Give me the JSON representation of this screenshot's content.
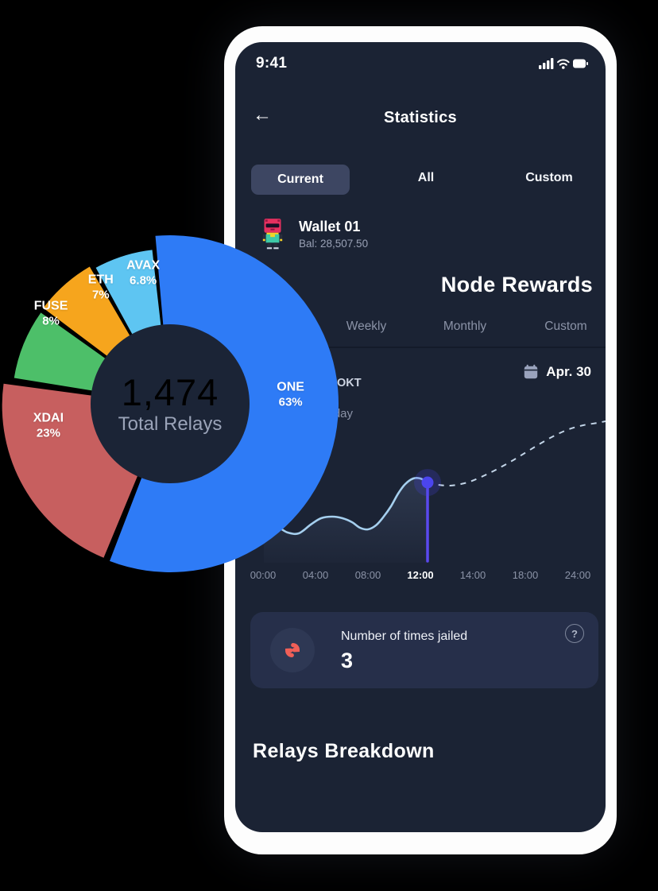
{
  "status_bar": {
    "time": "9:41"
  },
  "header": {
    "back_icon": "←",
    "title": "Statistics"
  },
  "range_tabs": {
    "items": [
      {
        "label": "Current",
        "selected": true
      },
      {
        "label": "All",
        "selected": false
      },
      {
        "label": "Custom",
        "selected": false
      }
    ]
  },
  "wallet": {
    "name": "Wallet 01",
    "balance": "Bal: 28,507.50"
  },
  "node_rewards": {
    "title": "Node Rewards",
    "period_tabs": [
      "Weekly",
      "Monthly",
      "Custom"
    ],
    "reward_unit": "OKT",
    "reward_period": "Today",
    "date": "Apr. 30"
  },
  "chart_data": [
    {
      "type": "pie",
      "style": "donut",
      "center_value": "1,474",
      "center_label": "Total Relays",
      "slices": [
        {
          "label": "ONE",
          "pct": 63,
          "color": "#2e7bf6"
        },
        {
          "label": "XDAI",
          "pct": 23,
          "color": "#c75f5f"
        },
        {
          "label": "FUSE",
          "pct": 8,
          "color": "#4dbf69"
        },
        {
          "label": "ETH",
          "pct": 7,
          "color": "#f6a51d"
        },
        {
          "label": "AVAX",
          "pct": 6.8,
          "color": "#5ec5f2"
        }
      ]
    },
    {
      "type": "line",
      "x_ticks": [
        "00:00",
        "04:00",
        "08:00",
        "12:00",
        "14:00",
        "18:00",
        "24:00"
      ],
      "highlighted_tick": "12:00",
      "marker_at": "12:00",
      "series": [
        {
          "name": "actual",
          "style": "solid",
          "points": [
            [
              36,
              172
            ],
            [
              52,
              170
            ],
            [
              66,
              177
            ],
            [
              80,
              178
            ],
            [
              95,
              167
            ],
            [
              108,
              159
            ],
            [
              122,
              157
            ],
            [
              135,
              159
            ],
            [
              147,
              164
            ],
            [
              157,
              171
            ],
            [
              167,
              173
            ],
            [
              177,
              168
            ],
            [
              186,
              158
            ],
            [
              196,
              144
            ],
            [
              205,
              128
            ],
            [
              214,
              116
            ],
            [
              224,
              109
            ],
            [
              233,
              109
            ],
            [
              242,
              114
            ]
          ]
        },
        {
          "name": "projected",
          "style": "dashed",
          "points": [
            [
              242,
              114
            ],
            [
              256,
              117
            ],
            [
              270,
              118
            ],
            [
              284,
              116
            ],
            [
              298,
              112
            ],
            [
              314,
              105
            ],
            [
              330,
              97
            ],
            [
              348,
              87
            ],
            [
              366,
              76
            ],
            [
              384,
              65
            ],
            [
              402,
              55
            ],
            [
              420,
              47
            ],
            [
              438,
              42
            ],
            [
              456,
              39
            ],
            [
              466,
              37
            ]
          ]
        }
      ]
    }
  ],
  "jailed_card": {
    "label": "Number of times jailed",
    "value": "3",
    "help": "?"
  },
  "relays_breakdown_title": "Relays Breakdown",
  "colors": {
    "screen_bg": "#1b2334",
    "card_bg": "#262f4a",
    "pill_bg": "#3d4662",
    "muted_text": "#8b93a7",
    "solid_line": "#a5cfee",
    "dashed_line": "#c3d5e8",
    "marker": "#4b45ee",
    "jail_icon": "#f05f57",
    "calendar_icon": "#9aa3bd"
  }
}
